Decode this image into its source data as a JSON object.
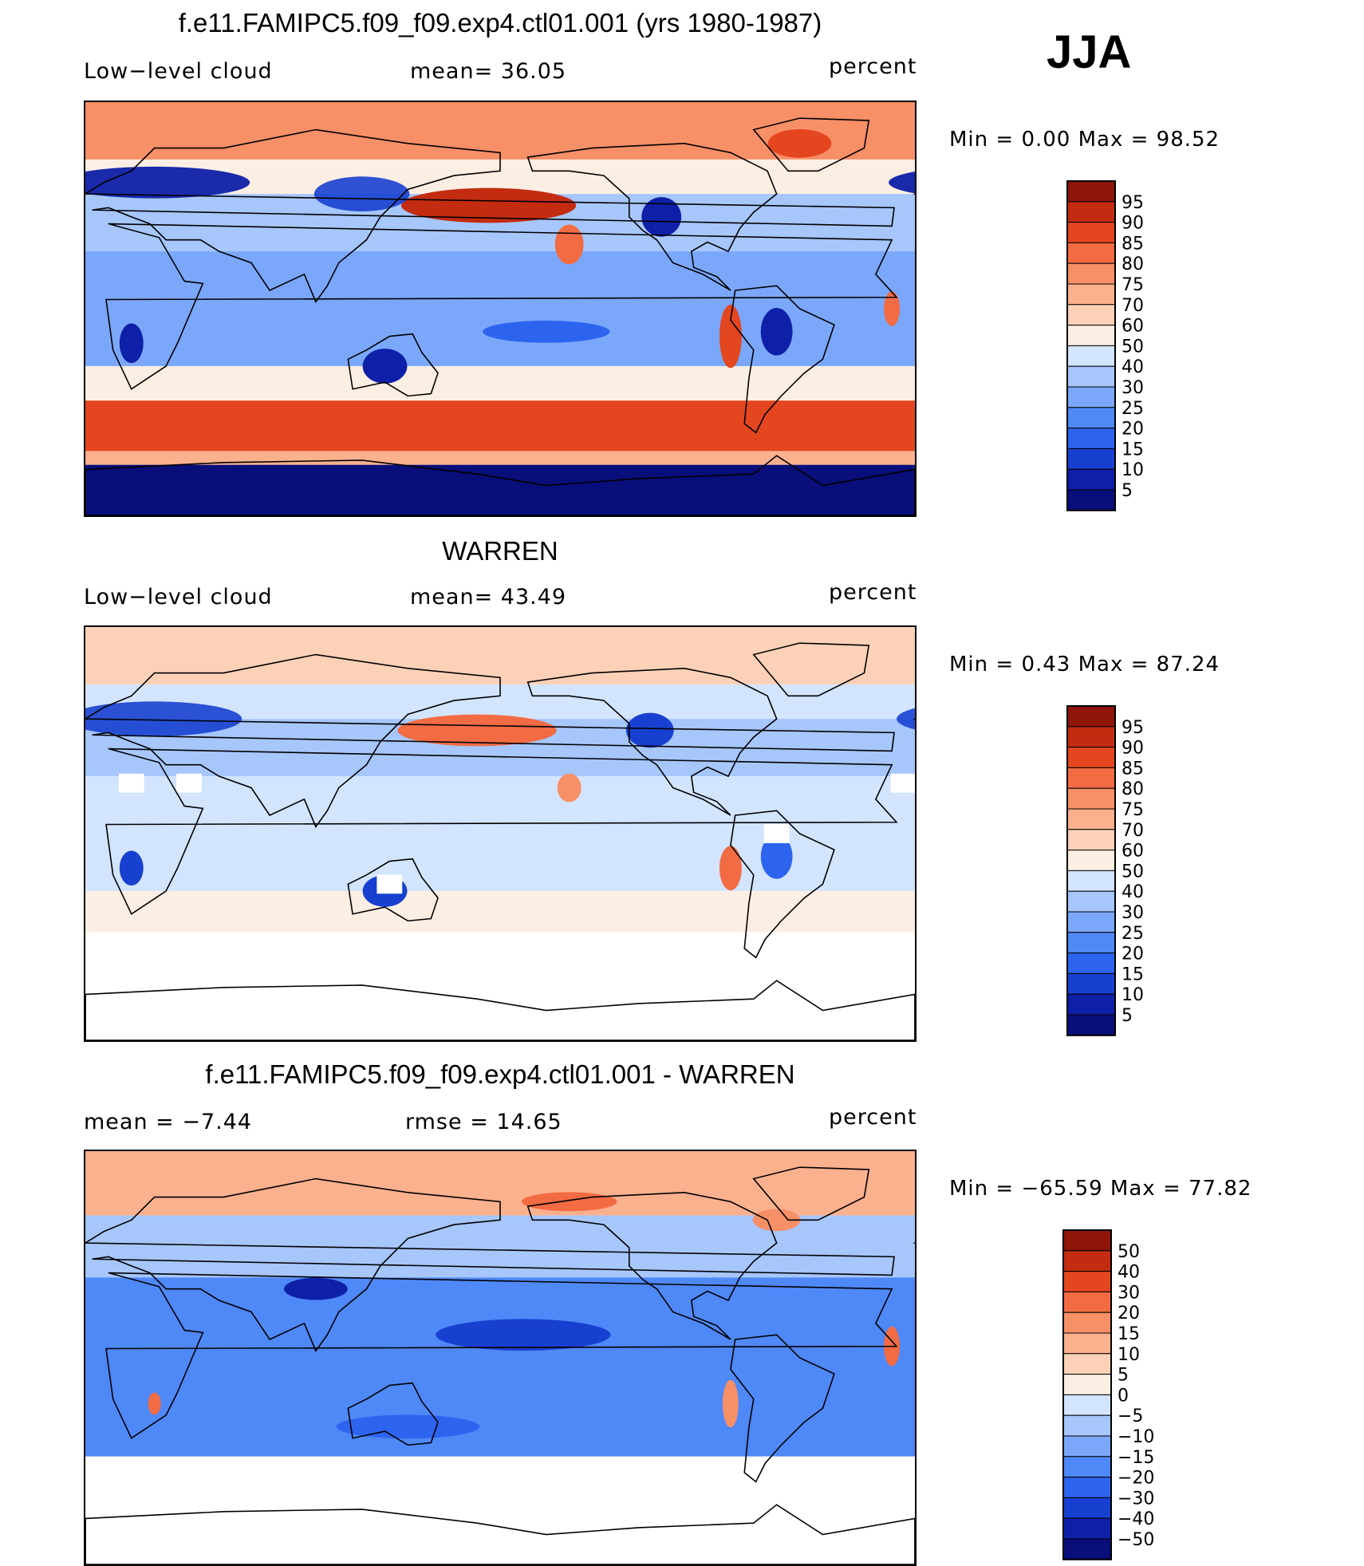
{
  "season": "JJA",
  "colors": {
    "scale": [
      "#0a0e7a",
      "#0e1fa8",
      "#1840d0",
      "#2d64ef",
      "#4f88f7",
      "#7aa7fa",
      "#a6c6fc",
      "#d3e4fe",
      "#fdeee3",
      "#fdd1b8",
      "#fbb08e",
      "#f78f67",
      "#f36b42",
      "#e4461f",
      "#c32c10",
      "#8e1508"
    ]
  },
  "panels": [
    {
      "title": "f.e11.FAMIPC5.f09_f09.exp4.ctl01.001 (yrs 1980-1987)",
      "left_label": "Low−level cloud",
      "center_label": "mean=   36.05",
      "right_label": "percent",
      "minmax": "Min  =      0.00  Max  =    98.52",
      "levels": [
        "95",
        "90",
        "85",
        "80",
        "75",
        "70",
        "60",
        "50",
        "40",
        "30",
        "25",
        "20",
        "15",
        "10",
        "5"
      ],
      "field": "model"
    },
    {
      "title": "WARREN",
      "left_label": "Low−level cloud",
      "center_label": "mean=   43.49",
      "right_label": "percent",
      "minmax": "Min  =      0.43  Max  =    87.24",
      "levels": [
        "95",
        "90",
        "85",
        "80",
        "75",
        "70",
        "60",
        "50",
        "40",
        "30",
        "25",
        "20",
        "15",
        "10",
        "5"
      ],
      "field": "obs"
    },
    {
      "title": "f.e11.FAMIPC5.f09_f09.exp4.ctl01.001 - WARREN",
      "left_label": "mean  =    −7.44",
      "center_label": "rmse  =    14.65",
      "right_label": "percent",
      "minmax": "Min  = −65.59  Max  =    77.82",
      "levels": [
        "50",
        "40",
        "30",
        "20",
        "15",
        "10",
        "5",
        "0",
        "−5",
        "−10",
        "−15",
        "−20",
        "−30",
        "−40",
        "−50"
      ],
      "field": "diff"
    }
  ]
}
